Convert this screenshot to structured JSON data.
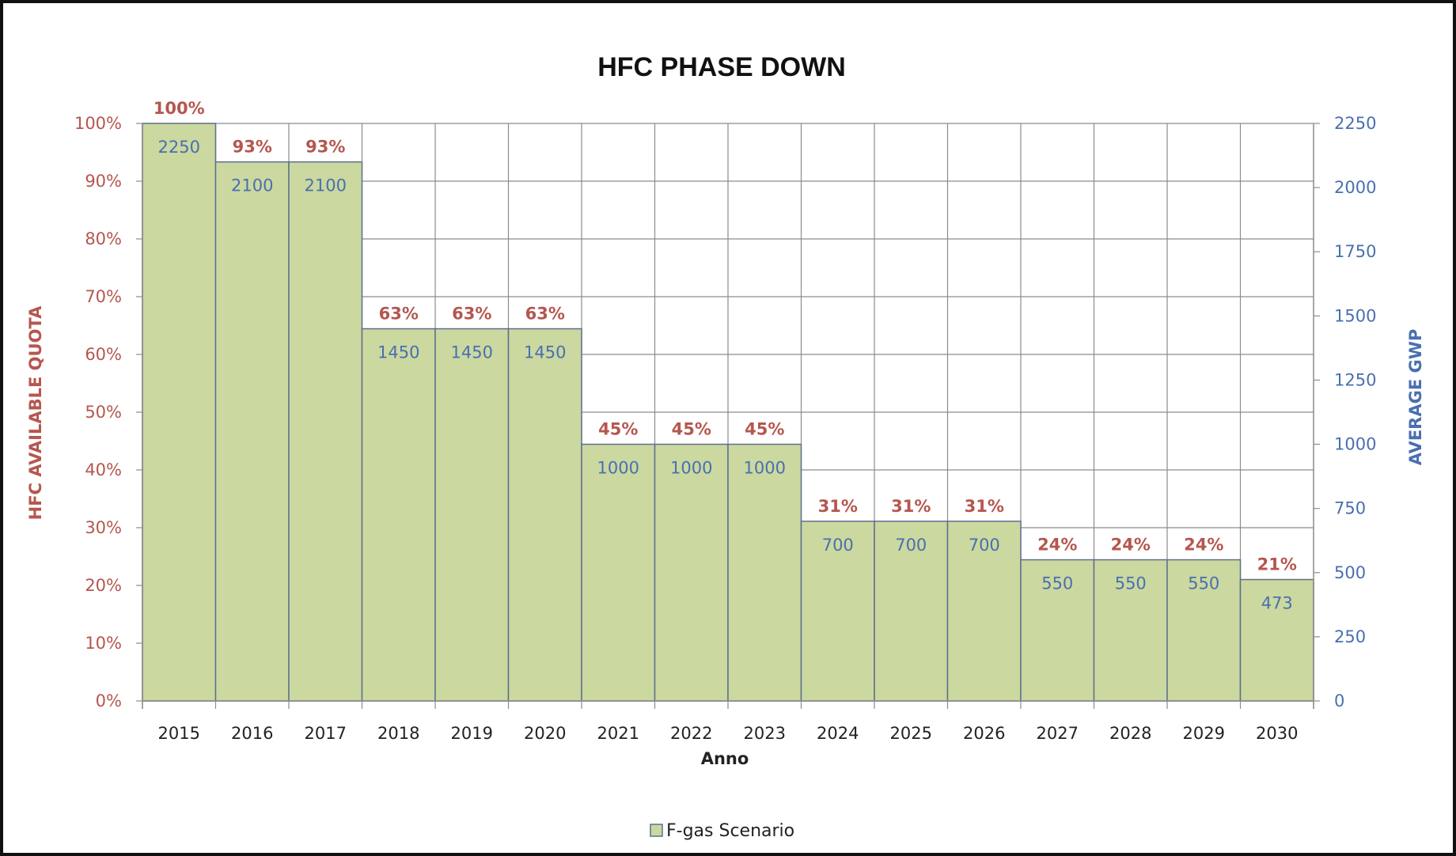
{
  "colors": {
    "bar_fill": "#cbd89f",
    "bar_stroke": "#5f6f90",
    "grid": "#8c8c8c",
    "left_axis": "#b4574f",
    "right_axis": "#4a6fb0",
    "title": "#111111"
  },
  "chart_data": {
    "type": "bar",
    "title": "HFC PHASE DOWN",
    "xlabel": "Anno",
    "ylabel": "HFC AVAILABLE QUOTA",
    "y2label": "AVERAGE GWP",
    "ylim": [
      0,
      100
    ],
    "y2lim": [
      0,
      2250
    ],
    "yticks": [
      "0%",
      "10%",
      "20%",
      "30%",
      "40%",
      "50%",
      "60%",
      "70%",
      "80%",
      "90%",
      "100%"
    ],
    "y2ticks": [
      "0",
      "250",
      "500",
      "750",
      "1000",
      "1250",
      "1500",
      "1750",
      "2000",
      "2250"
    ],
    "grid": true,
    "legend_position": "bottom",
    "categories": [
      "2015",
      "2016",
      "2017",
      "2018",
      "2019",
      "2020",
      "2021",
      "2022",
      "2023",
      "2024",
      "2025",
      "2026",
      "2027",
      "2028",
      "2029",
      "2030"
    ],
    "series": [
      {
        "name": "F-gas Scenario",
        "axis": "right",
        "values": [
          2250,
          2100,
          2100,
          1450,
          1450,
          1450,
          1000,
          1000,
          1000,
          700,
          700,
          700,
          550,
          550,
          550,
          473
        ],
        "labels": [
          "2250",
          "2100",
          "2100",
          "1450",
          "1450",
          "1450",
          "1000",
          "1000",
          "1000",
          "700",
          "700",
          "700",
          "550",
          "550",
          "550",
          "473"
        ]
      }
    ],
    "quota_labels": [
      "100%",
      "93%",
      "93%",
      "63%",
      "63%",
      "63%",
      "45%",
      "45%",
      "45%",
      "31%",
      "31%",
      "31%",
      "24%",
      "24%",
      "24%",
      "21%"
    ]
  }
}
